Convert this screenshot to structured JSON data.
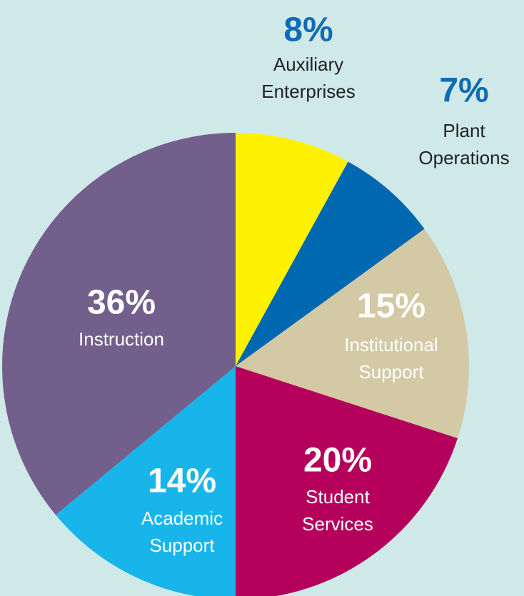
{
  "chart_data": {
    "type": "pie",
    "categories": [
      "Auxiliary Enterprises",
      "Plant Operations",
      "Institutional Support",
      "Student Services",
      "Academic Support",
      "Instruction"
    ],
    "values": [
      8,
      7,
      15,
      20,
      14,
      36
    ],
    "value_labels": [
      "8%",
      "7%",
      "15%",
      "20%",
      "14%",
      "36%"
    ],
    "colors": [
      "#fff200",
      "#0067b1",
      "#d3c9a5",
      "#b5005b",
      "#17b5ea",
      "#735f8b"
    ]
  }
}
